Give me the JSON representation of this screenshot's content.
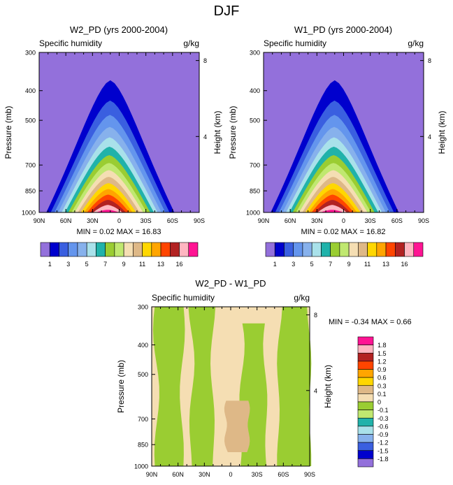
{
  "figure_title": "DJF",
  "colors": {
    "full_field_levels": [
      "#9370db",
      "#0000cd",
      "#3a5fe0",
      "#6495ed",
      "#87b1ec",
      "#a9e1ea",
      "#20b2aa",
      "#9acd32",
      "#c0e870",
      "#f5deb3",
      "#deb887",
      "#ffd700",
      "#ffa500",
      "#ff4500",
      "#b22222",
      "#ffb6c1",
      "#ff1493"
    ],
    "diff_levels": [
      "#ff1493",
      "#ffb6c1",
      "#b22222",
      "#ff4500",
      "#ffa500",
      "#ffd700",
      "#deb887",
      "#f5deb3",
      "#9acd32",
      "#c0e870",
      "#20b2aa",
      "#a9e1ea",
      "#87b1ec",
      "#3a5fe0",
      "#0000cd",
      "#9370db"
    ]
  },
  "chart_data": [
    {
      "type": "contour",
      "title": "W2_PD (yrs 2000-2004)",
      "left_label": "Specific humidity",
      "right_label": "g/kg",
      "xlabel": "",
      "ylabel": "Pressure (mb)",
      "ylabel_right": "Height (km)",
      "x_ticks": [
        "90N",
        "60N",
        "30N",
        "0",
        "30S",
        "60S",
        "90S"
      ],
      "x_range": [
        90,
        -90
      ],
      "y_ticks": [
        300,
        400,
        500,
        700,
        850,
        1000
      ],
      "y_range": [
        300,
        1000
      ],
      "height_ticks": [
        8,
        4
      ],
      "min": 0.02,
      "max": 16.83,
      "stats_text": "MIN =  0.02  MAX =  16.83",
      "levels": [
        1,
        2,
        3,
        4,
        5,
        6,
        7,
        8,
        9,
        10,
        11,
        12,
        13,
        14,
        16
      ],
      "colorbar_labels": [
        "1",
        "3",
        "5",
        "7",
        "9",
        "11",
        "13",
        "16"
      ],
      "field": {
        "peak_lat": 10,
        "peak_value": 16.83,
        "surface_width_deg": 72,
        "moist_top_mb": 370
      }
    },
    {
      "type": "contour",
      "title": "W1_PD (yrs 2000-2004)",
      "left_label": "Specific humidity",
      "right_label": "g/kg",
      "xlabel": "",
      "ylabel": "Pressure (mb)",
      "ylabel_right": "Height (km)",
      "x_ticks": [
        "90N",
        "60N",
        "30N",
        "0",
        "30S",
        "60S",
        "90S"
      ],
      "x_range": [
        90,
        -90
      ],
      "y_ticks": [
        300,
        400,
        500,
        700,
        850,
        1000
      ],
      "y_range": [
        300,
        1000
      ],
      "height_ticks": [
        8,
        4
      ],
      "min": 0.02,
      "max": 16.82,
      "stats_text": "MIN =  0.02  MAX =  16.82",
      "levels": [
        1,
        2,
        3,
        4,
        5,
        6,
        7,
        8,
        9,
        10,
        11,
        12,
        13,
        14,
        16
      ],
      "colorbar_labels": [
        "1",
        "3",
        "5",
        "7",
        "9",
        "11",
        "13",
        "16"
      ],
      "field": {
        "peak_lat": 10,
        "peak_value": 16.82,
        "surface_width_deg": 72,
        "moist_top_mb": 370
      }
    },
    {
      "type": "contour",
      "title": "W2_PD - W1_PD",
      "left_label": "Specific humidity",
      "right_label": "g/kg",
      "xlabel": "",
      "ylabel": "Pressure (mb)",
      "ylabel_right": "Height (km)",
      "x_ticks": [
        "90N",
        "60N",
        "30N",
        "0",
        "30S",
        "60S",
        "90S"
      ],
      "x_range": [
        90,
        -90
      ],
      "y_ticks": [
        300,
        400,
        500,
        700,
        850,
        1000
      ],
      "y_range": [
        300,
        1000
      ],
      "height_ticks": [
        8,
        4
      ],
      "min": -0.34,
      "max": 0.66,
      "stats_text": "MIN = -0.34  MAX =  0.66",
      "levels": [
        -1.8,
        -1.5,
        -1.2,
        -0.9,
        -0.6,
        -0.3,
        -0.1,
        0,
        0.1,
        0.3,
        0.6,
        0.9,
        1.2,
        1.5,
        1.8
      ],
      "colorbar_labels": [
        "1.8",
        "1.5",
        "1.2",
        "0.9",
        "0.6",
        "0.3",
        "0.1",
        "0",
        "-0.1",
        "-0.3",
        "-0.6",
        "-0.9",
        "-1.2",
        "-1.5",
        "-1.8"
      ],
      "regions": [
        {
          "value_band": "0 to 0.1",
          "description": "background"
        },
        {
          "value_band": "-0.1 to 0",
          "lat_range": [
            85,
            55
          ],
          "p_range": [
            300,
            1000
          ]
        },
        {
          "value_band": "-0.1 to 0",
          "lat_range": [
            45,
            20
          ],
          "p_range": [
            300,
            1000
          ]
        },
        {
          "value_band": "-0.1 to 0",
          "lat_range": [
            -12,
            -40
          ],
          "p_range": [
            340,
            1000
          ]
        },
        {
          "value_band": "-0.1 to 0",
          "lat_range": [
            -55,
            -90
          ],
          "p_range": [
            300,
            1000
          ]
        },
        {
          "value_band": "0.1 to 0.3",
          "lat_range": [
            5,
            -20
          ],
          "p_range": [
            610,
            900
          ]
        }
      ]
    }
  ]
}
